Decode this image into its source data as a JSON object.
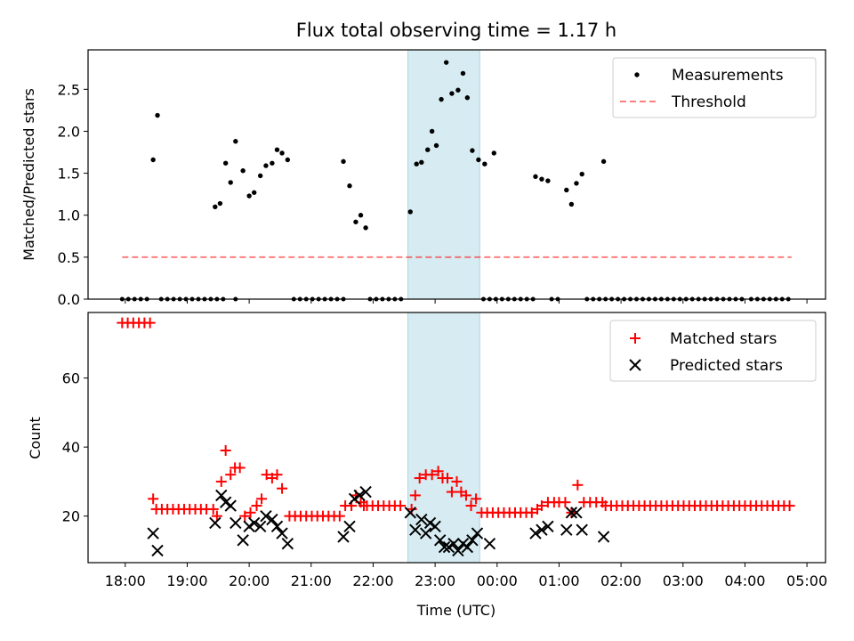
{
  "chart_data": {
    "type": "scatter",
    "title": "Flux total observing time = 1.17 h",
    "xlabel": "Time (UTC)",
    "x_ticks": [
      "18:00",
      "19:00",
      "20:00",
      "21:00",
      "22:00",
      "23:00",
      "00:00",
      "01:00",
      "02:00",
      "03:00",
      "04:00",
      "05:00"
    ],
    "x_unit": "hours since 18:00 UTC",
    "xlim": [
      -0.6,
      11.3
    ],
    "highlight_span": [
      4.56,
      5.72
    ],
    "top": {
      "ylabel": "Matched/Predicted stars",
      "ylim": [
        0,
        2.97
      ],
      "y_ticks": [
        "0.0",
        "0.5",
        "1.0",
        "1.5",
        "2.0",
        "2.5"
      ],
      "legend": [
        "Measurements",
        "Threshold"
      ],
      "threshold": {
        "value": 0.5,
        "x_range": [
          -0.05,
          10.75
        ]
      },
      "zero_x": [
        -0.05,
        0.05,
        0.15,
        0.25,
        0.35,
        0.58,
        0.68,
        0.78,
        0.88,
        0.98,
        1.08,
        1.18,
        1.28,
        1.38,
        1.48,
        1.58,
        1.78,
        2.72,
        2.82,
        2.92,
        3.02,
        3.12,
        3.22,
        3.32,
        3.42,
        3.52,
        3.95,
        4.05,
        4.15,
        4.25,
        4.35,
        4.45,
        5.78,
        5.88,
        5.98,
        6.08,
        6.18,
        6.28,
        6.38,
        6.48,
        6.58,
        6.88,
        6.98,
        7.45,
        7.55,
        7.65,
        7.75,
        7.85,
        7.95,
        8.05,
        8.15,
        8.25,
        8.35,
        8.45,
        8.55,
        8.65,
        8.75,
        8.85,
        8.95,
        9.05,
        9.15,
        9.25,
        9.35,
        9.45,
        9.55,
        9.65,
        9.75,
        9.85,
        9.95,
        10.1,
        10.2,
        10.3,
        10.4,
        10.5,
        10.6,
        10.7
      ],
      "points": [
        [
          0.45,
          1.66
        ],
        [
          0.52,
          2.19
        ],
        [
          1.45,
          1.1
        ],
        [
          1.53,
          1.14
        ],
        [
          1.62,
          1.62
        ],
        [
          1.7,
          1.39
        ],
        [
          1.78,
          1.88
        ],
        [
          1.9,
          1.53
        ],
        [
          2.0,
          1.23
        ],
        [
          2.08,
          1.27
        ],
        [
          2.18,
          1.47
        ],
        [
          2.27,
          1.59
        ],
        [
          2.37,
          1.62
        ],
        [
          2.45,
          1.78
        ],
        [
          2.53,
          1.74
        ],
        [
          2.62,
          1.66
        ],
        [
          3.52,
          1.64
        ],
        [
          3.62,
          1.35
        ],
        [
          3.72,
          0.92
        ],
        [
          3.8,
          1.0
        ],
        [
          3.88,
          0.85
        ],
        [
          4.6,
          1.04
        ],
        [
          4.7,
          1.61
        ],
        [
          4.78,
          1.63
        ],
        [
          4.88,
          1.78
        ],
        [
          4.95,
          2.0
        ],
        [
          5.02,
          1.83
        ],
        [
          5.1,
          2.38
        ],
        [
          5.18,
          2.82
        ],
        [
          5.27,
          2.45
        ],
        [
          5.37,
          2.49
        ],
        [
          5.45,
          2.69
        ],
        [
          5.52,
          2.4
        ],
        [
          5.6,
          1.77
        ],
        [
          5.7,
          1.66
        ],
        [
          5.8,
          1.61
        ],
        [
          5.95,
          1.74
        ],
        [
          6.62,
          1.46
        ],
        [
          6.72,
          1.43
        ],
        [
          6.82,
          1.41
        ],
        [
          7.12,
          1.3
        ],
        [
          7.2,
          1.13
        ],
        [
          7.28,
          1.38
        ],
        [
          7.37,
          1.49
        ],
        [
          7.72,
          1.64
        ]
      ]
    },
    "bottom": {
      "ylabel": "Count",
      "ylim": [
        6.5,
        79
      ],
      "y_ticks": [
        "20",
        "40",
        "60"
      ],
      "legend": [
        "Matched stars",
        "Predicted stars"
      ],
      "series": [
        {
          "name": "Matched stars",
          "color": "#ff0000",
          "marker": "plus",
          "runs": [
            {
              "from": -0.05,
              "to": 0.4,
              "step": 0.09,
              "y": 76
            },
            {
              "from": 0.5,
              "to": 1.38,
              "step": 0.09,
              "y": 22
            },
            {
              "from": 2.65,
              "to": 3.48,
              "step": 0.09,
              "y": 20
            },
            {
              "from": 3.9,
              "to": 4.5,
              "step": 0.09,
              "y": 23
            },
            {
              "from": 5.75,
              "to": 6.6,
              "step": 0.09,
              "y": 21
            },
            {
              "from": 7.75,
              "to": 10.75,
              "step": 0.09,
              "y": 23
            }
          ],
          "points": [
            [
              0.45,
              25
            ],
            [
              1.42,
              22
            ],
            [
              1.48,
              20
            ],
            [
              1.55,
              30
            ],
            [
              1.62,
              39
            ],
            [
              1.7,
              32
            ],
            [
              1.77,
              34
            ],
            [
              1.85,
              34
            ],
            [
              1.93,
              20
            ],
            [
              2.02,
              21
            ],
            [
              2.12,
              23
            ],
            [
              2.2,
              25
            ],
            [
              2.28,
              32
            ],
            [
              2.37,
              31
            ],
            [
              2.45,
              32
            ],
            [
              2.53,
              28
            ],
            [
              3.55,
              23
            ],
            [
              3.65,
              23
            ],
            [
              3.72,
              26
            ],
            [
              3.8,
              24
            ],
            [
              3.85,
              23
            ],
            [
              4.62,
              22
            ],
            [
              4.68,
              26
            ],
            [
              4.75,
              31
            ],
            [
              4.85,
              32
            ],
            [
              4.95,
              32
            ],
            [
              5.05,
              33
            ],
            [
              5.12,
              31
            ],
            [
              5.2,
              31
            ],
            [
              5.27,
              27
            ],
            [
              5.35,
              30
            ],
            [
              5.42,
              27
            ],
            [
              5.5,
              26
            ],
            [
              5.58,
              23
            ],
            [
              5.66,
              25
            ],
            [
              6.65,
              22
            ],
            [
              6.72,
              23
            ],
            [
              6.82,
              24
            ],
            [
              6.92,
              24
            ],
            [
              7.0,
              24
            ],
            [
              7.1,
              24
            ],
            [
              7.2,
              21
            ],
            [
              7.3,
              29
            ],
            [
              7.4,
              24
            ],
            [
              7.5,
              24
            ],
            [
              7.6,
              24
            ],
            [
              7.7,
              24
            ]
          ]
        },
        {
          "name": "Predicted stars",
          "color": "#000000",
          "marker": "x",
          "points": [
            [
              0.45,
              15
            ],
            [
              0.52,
              10
            ],
            [
              1.45,
              18
            ],
            [
              1.55,
              26
            ],
            [
              1.62,
              24
            ],
            [
              1.7,
              23
            ],
            [
              1.78,
              18
            ],
            [
              1.9,
              13
            ],
            [
              2.0,
              17
            ],
            [
              2.08,
              18
            ],
            [
              2.18,
              17
            ],
            [
              2.27,
              20
            ],
            [
              2.37,
              19
            ],
            [
              2.45,
              17
            ],
            [
              2.53,
              15
            ],
            [
              2.62,
              12
            ],
            [
              3.52,
              14
            ],
            [
              3.62,
              17
            ],
            [
              3.7,
              25
            ],
            [
              3.78,
              26
            ],
            [
              3.88,
              27
            ],
            [
              4.6,
              21
            ],
            [
              4.68,
              16
            ],
            [
              4.78,
              19
            ],
            [
              4.85,
              15
            ],
            [
              4.92,
              18
            ],
            [
              5.0,
              17
            ],
            [
              5.08,
              13
            ],
            [
              5.15,
              11
            ],
            [
              5.22,
              11
            ],
            [
              5.3,
              12
            ],
            [
              5.37,
              10
            ],
            [
              5.45,
              12
            ],
            [
              5.52,
              11
            ],
            [
              5.6,
              13
            ],
            [
              5.68,
              15
            ],
            [
              5.88,
              12
            ],
            [
              6.62,
              15
            ],
            [
              6.72,
              16
            ],
            [
              6.82,
              17
            ],
            [
              7.12,
              16
            ],
            [
              7.2,
              21
            ],
            [
              7.28,
              21
            ],
            [
              7.37,
              16
            ],
            [
              7.72,
              14
            ]
          ]
        }
      ]
    }
  }
}
